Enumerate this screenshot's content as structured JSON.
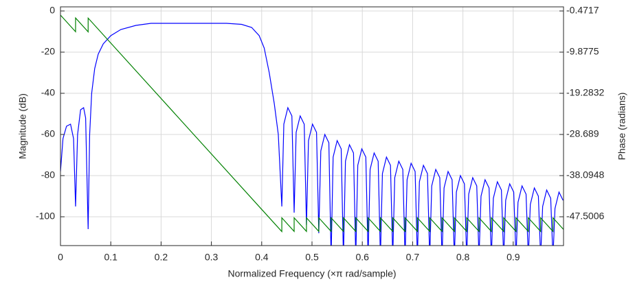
{
  "chart_data": {
    "type": "line",
    "xlabel": "Normalized Frequency (×π rad/sample)",
    "ylabel": "Magnitude (dB)",
    "y2label": "Phase (radians)",
    "xlim": [
      0,
      1
    ],
    "xticks": [
      0,
      0.1,
      0.2,
      0.3,
      0.4,
      0.5,
      0.6,
      0.7,
      0.8,
      0.9
    ],
    "ylim": [
      -114,
      2
    ],
    "yticks": [
      0,
      -20,
      -40,
      -60,
      -80,
      -100
    ],
    "y2lim": [
      0.4689,
      -54.085
    ],
    "y2ticks": [
      -0.4717,
      -9.8775,
      -19.2832,
      -28.689,
      -38.0948,
      -47.5006
    ],
    "grid": true,
    "series": [
      {
        "color": "#0000ff",
        "x": [
          0,
          0.005,
          0.012,
          0.02,
          0.026,
          0.03,
          0.034,
          0.04,
          0.046,
          0.05,
          0.055,
          0.058,
          0.062,
          0.068,
          0.075,
          0.085,
          0.1,
          0.12,
          0.15,
          0.18,
          0.33,
          0.36,
          0.38,
          0.395,
          0.405,
          0.415,
          0.425,
          0.433,
          0.44,
          0.444,
          0.452,
          0.46,
          0.4645,
          0.4685,
          0.4765,
          0.4845,
          0.489,
          0.493,
          0.501,
          0.509,
          0.5135,
          0.5175,
          0.5255,
          0.5335,
          0.538,
          0.542,
          0.55,
          0.558,
          0.5625,
          0.5665,
          0.5745,
          0.5825,
          0.587,
          0.591,
          0.599,
          0.607,
          0.6115,
          0.6155,
          0.6235,
          0.6315,
          0.636,
          0.64,
          0.648,
          0.656,
          0.6605,
          0.6645,
          0.6725,
          0.6805,
          0.685,
          0.689,
          0.697,
          0.705,
          0.7095,
          0.7135,
          0.7215,
          0.7295,
          0.734,
          0.738,
          0.746,
          0.754,
          0.7585,
          0.7625,
          0.7705,
          0.7785,
          0.783,
          0.787,
          0.795,
          0.803,
          0.8075,
          0.8115,
          0.8195,
          0.8275,
          0.832,
          0.836,
          0.844,
          0.852,
          0.8565,
          0.8605,
          0.8685,
          0.8765,
          0.881,
          0.885,
          0.893,
          0.901,
          0.9055,
          0.9095,
          0.9175,
          0.9255,
          0.93,
          0.934,
          0.942,
          0.95,
          0.9545,
          0.9585,
          0.9665,
          0.9745,
          0.979,
          0.983,
          0.991,
          0.999
        ],
        "values": [
          -78,
          -62,
          -56,
          -55,
          -62,
          -95,
          -60,
          -48,
          -47,
          -52,
          -106,
          -60,
          -40,
          -28,
          -21,
          -16,
          -12,
          -9,
          -7,
          -6,
          -6,
          -6.5,
          -8,
          -12,
          -18,
          -30,
          -45,
          -60,
          -95,
          -55,
          -47,
          -51,
          -98,
          -59,
          -51,
          -55,
          -104,
          -63,
          -55,
          -59,
          -108,
          -68,
          -60,
          -64,
          -120,
          -71,
          -63,
          -67,
          -120,
          -73,
          -65,
          -69,
          -120,
          -75,
          -67,
          -71,
          -120,
          -77,
          -69,
          -73,
          -120,
          -79,
          -71,
          -75,
          -120,
          -81,
          -73,
          -77,
          -120,
          -82,
          -74,
          -78,
          -120,
          -83,
          -75,
          -79,
          -120,
          -85,
          -77,
          -81,
          -120,
          -86,
          -78,
          -82,
          -120,
          -88,
          -80,
          -84,
          -120,
          -89,
          -81,
          -85,
          -120,
          -90,
          -82,
          -86,
          -120,
          -91,
          -83,
          -87,
          -120,
          -92,
          -84,
          -88,
          -120,
          -93,
          -85,
          -89,
          -120,
          -94,
          -86,
          -90,
          -120,
          -95,
          -87,
          -91,
          -120,
          -96,
          -88,
          -92
        ]
      },
      {
        "color": "#008000",
        "axis": "y2",
        "x": [
          0,
          0.03,
          0.03,
          0.055,
          0.055,
          0.44,
          0.44,
          0.4645,
          0.4645,
          0.489,
          0.489,
          0.5135,
          0.5135,
          0.538,
          0.538,
          0.5625,
          0.5625,
          0.587,
          0.587,
          0.6115,
          0.6115,
          0.636,
          0.636,
          0.6605,
          0.6605,
          0.685,
          0.685,
          0.7095,
          0.7095,
          0.734,
          0.734,
          0.7585,
          0.7585,
          0.783,
          0.783,
          0.8075,
          0.8075,
          0.832,
          0.832,
          0.8565,
          0.8565,
          0.881,
          0.881,
          0.9055,
          0.9055,
          0.93,
          0.93,
          0.9545,
          0.9545,
          0.979,
          0.979,
          1.0
        ],
        "values": [
          -1.412,
          -5.21,
          -2.07,
          -5.24,
          -2.1,
          -50.88,
          -47.74,
          -50.84,
          -47.74,
          -50.84,
          -47.74,
          -50.84,
          -47.74,
          -50.84,
          -47.74,
          -50.84,
          -47.74,
          -50.84,
          -47.74,
          -50.84,
          -47.74,
          -50.84,
          -47.74,
          -50.84,
          -47.74,
          -50.84,
          -47.74,
          -50.84,
          -47.74,
          -50.84,
          -47.74,
          -50.84,
          -47.74,
          -50.84,
          -47.74,
          -50.84,
          -47.74,
          -50.84,
          -47.74,
          -50.84,
          -47.74,
          -50.84,
          -47.74,
          -50.84,
          -47.74,
          -50.84,
          -47.74,
          -50.84,
          -47.74,
          -50.84,
          -47.74,
          -50.4
        ]
      }
    ]
  }
}
